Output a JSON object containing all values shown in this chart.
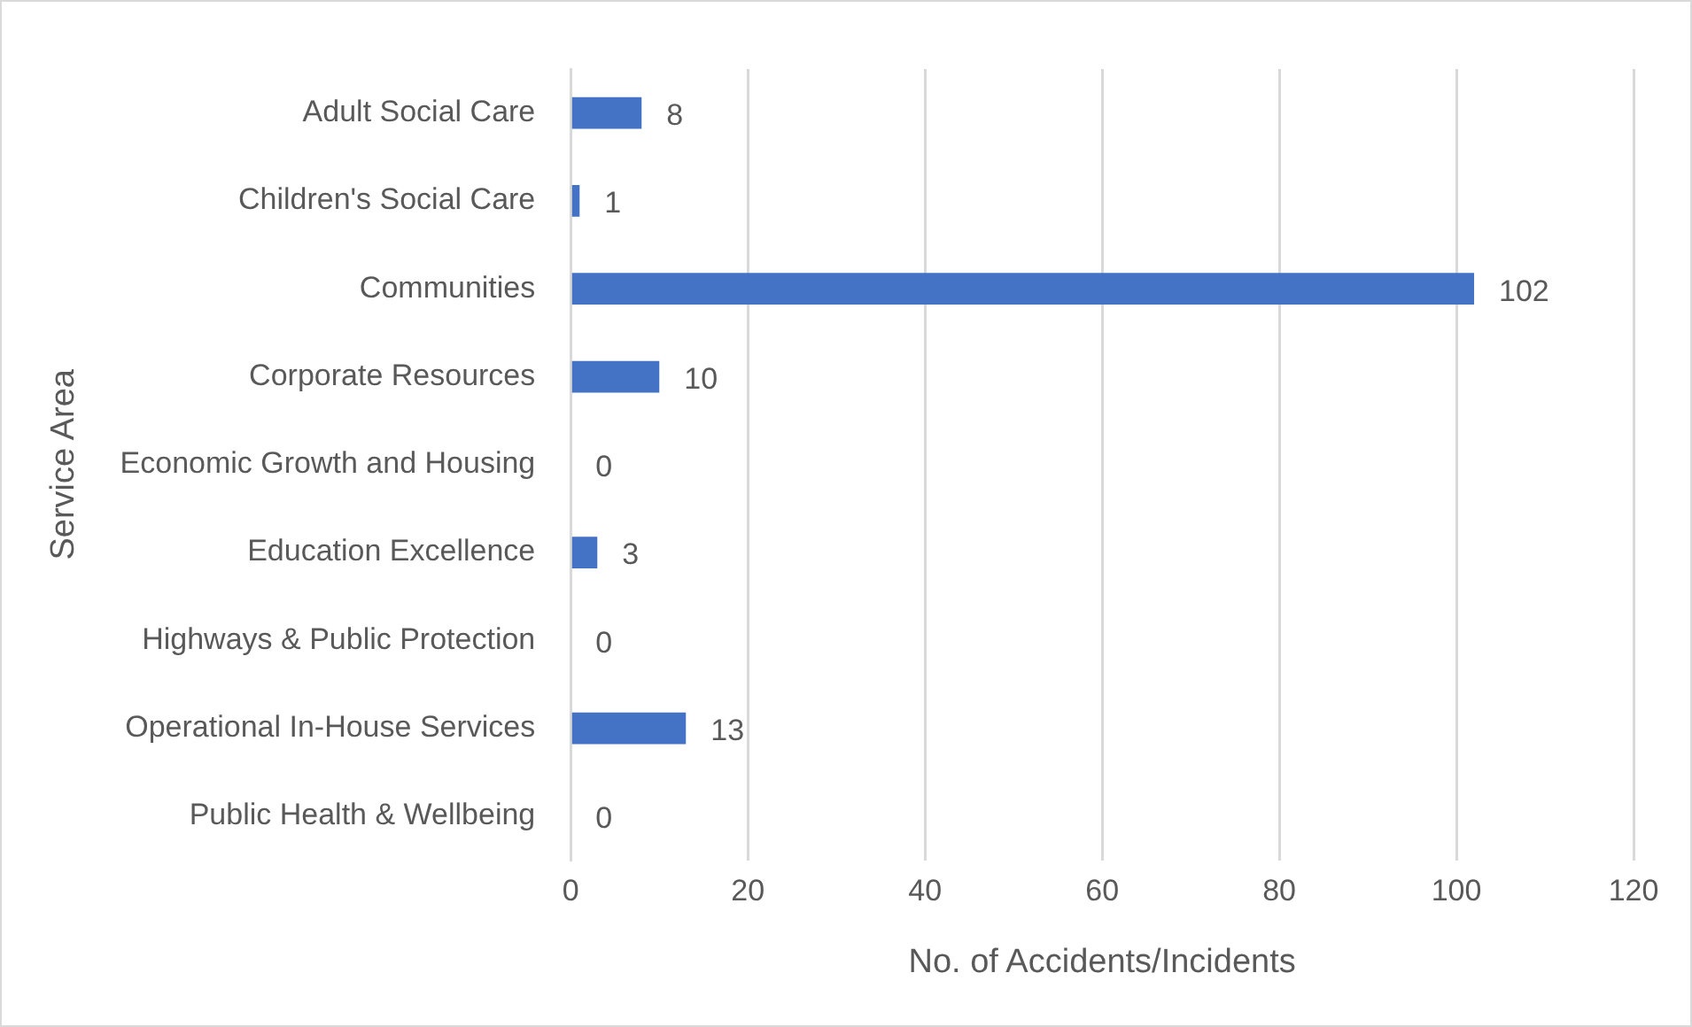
{
  "chart_data": {
    "type": "bar",
    "orientation": "horizontal",
    "xlabel": "No. of Accidents/Incidents",
    "ylabel": "Service Area",
    "categories": [
      "Adult Social Care",
      "Children's Social Care",
      "Communities",
      "Corporate Resources",
      "Economic Growth and Housing",
      "Education Excellence",
      "Highways & Public Protection",
      "Operational In-House Services",
      "Public Health & Wellbeing"
    ],
    "values": [
      8,
      1,
      102,
      10,
      0,
      3,
      0,
      13,
      0
    ],
    "color": "#4472c4",
    "xlim": [
      0,
      120
    ],
    "xticks": [
      0,
      20,
      40,
      60,
      80,
      100,
      120
    ],
    "grid": "x",
    "legend": false,
    "data_labels": true
  }
}
